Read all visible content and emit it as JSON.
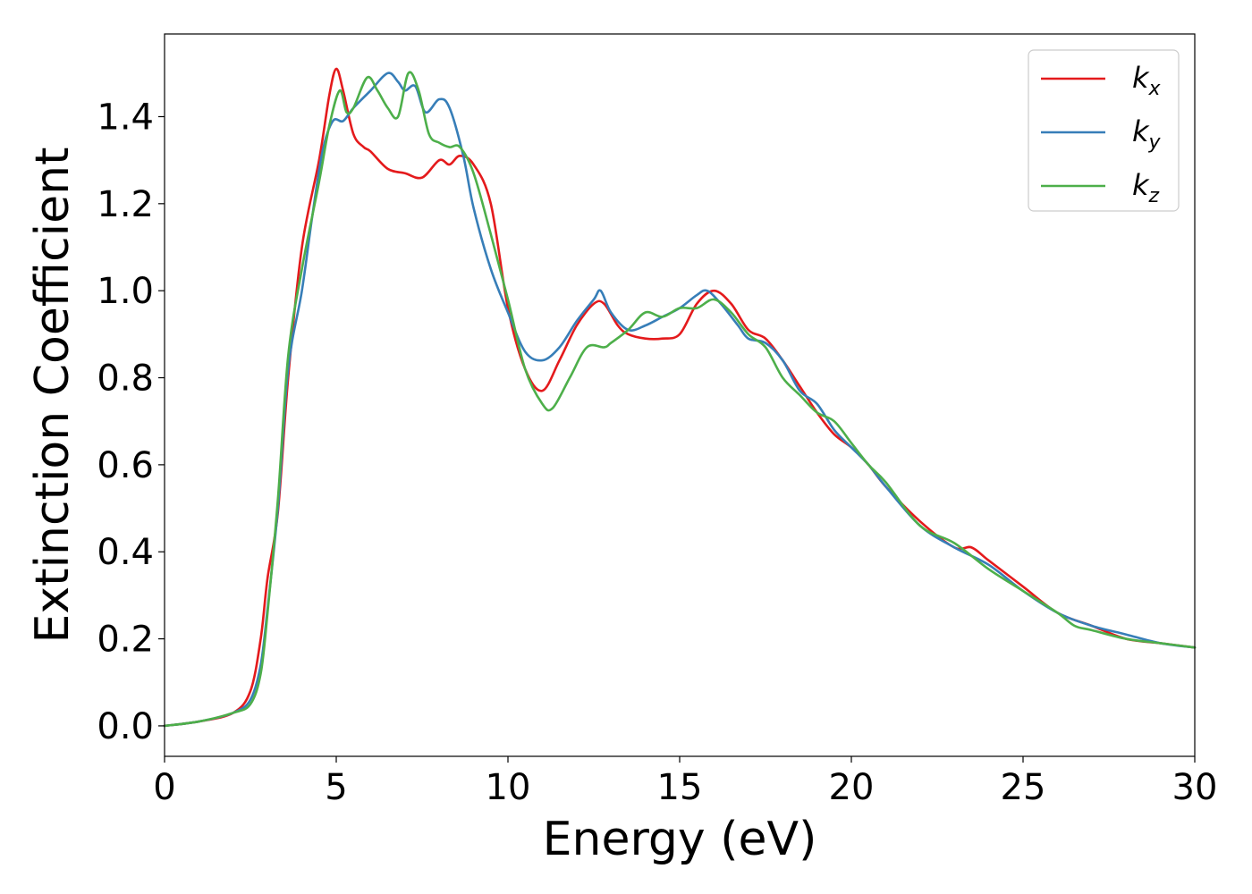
{
  "chart_data": {
    "type": "line",
    "xlabel": "Energy (eV)",
    "ylabel": "Extinction Coefficient",
    "xlim": [
      0,
      30
    ],
    "ylim": [
      -0.07,
      1.59
    ],
    "x_ticks": [
      "0",
      "5",
      "10",
      "15",
      "20",
      "25",
      "30"
    ],
    "y_ticks": [
      "0.0",
      "0.2",
      "0.4",
      "0.6",
      "0.8",
      "1.0",
      "1.2",
      "1.4"
    ],
    "grid": false,
    "legend_position": "top-right",
    "series": [
      {
        "name": "kx",
        "label_main": "k",
        "label_sub": "x",
        "color": "#e41a1c",
        "x": [
          0,
          1,
          2,
          2.5,
          2.8,
          3.0,
          3.3,
          3.6,
          4.0,
          4.5,
          4.8,
          5.0,
          5.2,
          5.5,
          5.8,
          6.0,
          6.5,
          7.0,
          7.5,
          8.0,
          8.3,
          8.6,
          9.0,
          9.5,
          10.0,
          10.5,
          11.0,
          11.5,
          12.0,
          12.5,
          12.8,
          13.2,
          13.5,
          14.0,
          14.5,
          15.0,
          15.5,
          16.0,
          16.5,
          17.0,
          17.5,
          18.0,
          18.5,
          19.0,
          19.5,
          20.0,
          20.5,
          21.0,
          22.0,
          23.0,
          23.5,
          24.0,
          25.0,
          26.0,
          27.0,
          28.0,
          29.0,
          30.0
        ],
        "y": [
          0.0,
          0.01,
          0.03,
          0.08,
          0.2,
          0.34,
          0.49,
          0.8,
          1.1,
          1.3,
          1.45,
          1.51,
          1.46,
          1.36,
          1.33,
          1.32,
          1.28,
          1.27,
          1.26,
          1.3,
          1.29,
          1.31,
          1.29,
          1.2,
          0.96,
          0.82,
          0.77,
          0.84,
          0.92,
          0.97,
          0.97,
          0.92,
          0.9,
          0.89,
          0.89,
          0.9,
          0.97,
          1.0,
          0.97,
          0.91,
          0.89,
          0.84,
          0.78,
          0.72,
          0.67,
          0.64,
          0.6,
          0.55,
          0.47,
          0.41,
          0.41,
          0.38,
          0.32,
          0.26,
          0.23,
          0.2,
          0.19,
          0.18
        ]
      },
      {
        "name": "ky",
        "label_main": "k",
        "label_sub": "y",
        "color": "#377eb8",
        "x": [
          0,
          1,
          2,
          2.5,
          2.8,
          3.0,
          3.3,
          3.6,
          4.0,
          4.3,
          4.6,
          4.9,
          5.2,
          5.5,
          6.0,
          6.5,
          6.8,
          7.0,
          7.3,
          7.6,
          8.0,
          8.3,
          8.7,
          9.0,
          9.5,
          10.0,
          10.5,
          11.0,
          11.5,
          12.0,
          12.5,
          12.7,
          13.0,
          13.5,
          14.0,
          14.5,
          15.0,
          15.5,
          15.8,
          16.2,
          16.7,
          17.0,
          17.5,
          18.0,
          18.5,
          19.0,
          19.5,
          20.0,
          20.5,
          21.0,
          22.0,
          23.0,
          24.0,
          25.0,
          26.0,
          27.0,
          28.0,
          29.0,
          30.0
        ],
        "y": [
          0.0,
          0.01,
          0.03,
          0.06,
          0.14,
          0.27,
          0.5,
          0.82,
          1.0,
          1.17,
          1.32,
          1.39,
          1.39,
          1.42,
          1.46,
          1.5,
          1.48,
          1.46,
          1.47,
          1.41,
          1.44,
          1.42,
          1.31,
          1.19,
          1.05,
          0.95,
          0.86,
          0.84,
          0.87,
          0.93,
          0.98,
          1.0,
          0.95,
          0.91,
          0.92,
          0.94,
          0.96,
          0.99,
          1.0,
          0.97,
          0.92,
          0.89,
          0.88,
          0.84,
          0.77,
          0.74,
          0.68,
          0.64,
          0.6,
          0.55,
          0.46,
          0.41,
          0.37,
          0.31,
          0.26,
          0.23,
          0.21,
          0.19,
          0.18
        ]
      },
      {
        "name": "kz",
        "label_main": "k",
        "label_sub": "z",
        "color": "#4daf4a",
        "x": [
          0,
          1,
          2,
          2.5,
          2.8,
          3.0,
          3.3,
          3.6,
          4.0,
          4.5,
          4.8,
          5.1,
          5.3,
          5.5,
          5.9,
          6.2,
          6.5,
          6.8,
          7.1,
          7.4,
          7.7,
          8.0,
          8.3,
          8.6,
          9.0,
          9.5,
          10.0,
          10.5,
          11.0,
          11.3,
          11.8,
          12.3,
          12.8,
          13.0,
          13.5,
          14.0,
          14.5,
          15.0,
          15.5,
          16.0,
          16.5,
          17.0,
          17.5,
          18.0,
          18.5,
          19.0,
          19.5,
          20.0,
          20.5,
          21.0,
          22.0,
          23.0,
          24.0,
          25.0,
          26.0,
          26.5,
          27.0,
          28.0,
          29.0,
          30.0
        ],
        "y": [
          0.0,
          0.01,
          0.03,
          0.05,
          0.12,
          0.26,
          0.52,
          0.85,
          1.05,
          1.25,
          1.38,
          1.46,
          1.41,
          1.42,
          1.49,
          1.46,
          1.42,
          1.4,
          1.5,
          1.46,
          1.36,
          1.34,
          1.33,
          1.33,
          1.27,
          1.13,
          0.98,
          0.82,
          0.74,
          0.73,
          0.8,
          0.87,
          0.87,
          0.88,
          0.91,
          0.95,
          0.94,
          0.96,
          0.96,
          0.98,
          0.95,
          0.9,
          0.87,
          0.8,
          0.76,
          0.72,
          0.7,
          0.65,
          0.6,
          0.56,
          0.46,
          0.42,
          0.36,
          0.31,
          0.26,
          0.23,
          0.22,
          0.2,
          0.19,
          0.18
        ]
      }
    ]
  }
}
